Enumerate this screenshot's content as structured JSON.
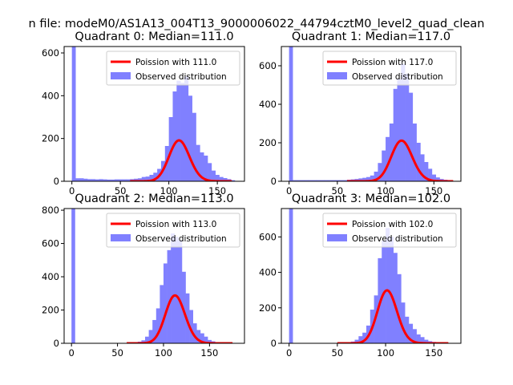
{
  "figure": {
    "suptitle": "n file: modeM0/AS1A13_004T13_9000006022_44794cztM0_level2_quad_clean"
  },
  "colors": {
    "observed": "#8080ff",
    "poisson": "#ff0000"
  },
  "chart_data": [
    {
      "type": "bar",
      "title": "Quadrant 0: Median=111.0",
      "xlim": [
        -8,
        178
      ],
      "ylim": [
        0,
        630
      ],
      "xticks": [
        0,
        50,
        100,
        150
      ],
      "yticks": [
        0,
        200,
        400,
        600
      ],
      "grid": false,
      "legend_position": "top-right",
      "legend": [
        "Poission with 111.0",
        "Observed distribution"
      ],
      "observed": {
        "name": "Observed distribution",
        "bin_width": 4,
        "spike": {
          "x": 0,
          "width": 4,
          "value": 630
        },
        "bins_start": [
          0,
          4,
          8,
          12,
          16,
          20,
          24,
          28,
          32,
          36,
          40,
          44,
          48,
          52,
          56,
          60,
          64,
          68,
          72,
          76,
          80,
          84,
          88,
          92,
          96,
          100,
          104,
          108,
          112,
          116,
          120,
          124,
          128,
          132,
          136,
          140,
          144,
          148,
          152,
          156,
          160,
          164
        ],
        "values": [
          12,
          14,
          14,
          12,
          10,
          10,
          9,
          10,
          9,
          8,
          8,
          9,
          9,
          9,
          9,
          10,
          12,
          14,
          20,
          22,
          30,
          40,
          58,
          95,
          165,
          300,
          420,
          470,
          460,
          490,
          400,
          320,
          170,
          135,
          120,
          85,
          50,
          30,
          20,
          15,
          10,
          5
        ]
      },
      "poisson": {
        "name": "Poission with 111.0",
        "lambda": 111.0,
        "scale": 5050,
        "x_range": [
          60,
          165
        ]
      }
    },
    {
      "type": "bar",
      "title": "Quadrant 1: Median=117.0",
      "xlim": [
        -8,
        178
      ],
      "ylim": [
        0,
        700
      ],
      "xticks": [
        0,
        50,
        100,
        150
      ],
      "yticks": [
        0,
        200,
        400,
        600
      ],
      "grid": false,
      "legend_position": "top-right",
      "legend": [
        "Poission with 117.0",
        "Observed distribution"
      ],
      "observed": {
        "name": "Observed distribution",
        "bin_width": 4,
        "spike": {
          "x": 0,
          "width": 4,
          "value": 700
        },
        "bins_start": [
          0,
          4,
          8,
          12,
          16,
          20,
          24,
          28,
          32,
          36,
          40,
          44,
          48,
          52,
          56,
          60,
          64,
          68,
          72,
          76,
          80,
          84,
          88,
          92,
          96,
          100,
          104,
          108,
          112,
          116,
          120,
          124,
          128,
          132,
          136,
          140,
          144,
          148,
          152,
          156,
          160,
          164
        ],
        "values": [
          6,
          6,
          6,
          6,
          6,
          6,
          6,
          6,
          6,
          6,
          6,
          6,
          6,
          6,
          6,
          8,
          10,
          12,
          15,
          18,
          22,
          30,
          50,
          95,
          160,
          230,
          300,
          480,
          530,
          610,
          560,
          460,
          300,
          200,
          140,
          100,
          65,
          35,
          20,
          12,
          8,
          5
        ]
      },
      "poisson": {
        "name": "Poission with 117.0",
        "lambda": 117.0,
        "scale": 5730,
        "x_range": [
          60,
          170
        ]
      }
    },
    {
      "type": "bar",
      "title": "Quadrant 2: Median=113.0",
      "xlim": [
        -8,
        188
      ],
      "ylim": [
        0,
        810
      ],
      "xticks": [
        0,
        50,
        100,
        150
      ],
      "yticks": [
        0,
        200,
        400,
        600,
        800
      ],
      "grid": false,
      "legend_position": "top-right",
      "legend": [
        "Poission with 113.0",
        "Observed distribution"
      ],
      "observed": {
        "name": "Observed distribution",
        "bin_width": 4,
        "spike": {
          "x": 0,
          "width": 4,
          "value": 810
        },
        "bins_start": [
          0,
          4,
          8,
          12,
          16,
          20,
          24,
          28,
          32,
          36,
          40,
          44,
          48,
          52,
          56,
          60,
          64,
          68,
          72,
          76,
          80,
          84,
          88,
          92,
          96,
          100,
          104,
          108,
          112,
          116,
          120,
          124,
          128,
          132,
          136,
          140,
          144,
          148,
          152,
          156,
          160,
          164,
          168,
          172
        ],
        "values": [
          2,
          2,
          2,
          2,
          2,
          2,
          2,
          2,
          2,
          2,
          2,
          2,
          2,
          2,
          2,
          2,
          4,
          6,
          10,
          18,
          40,
          80,
          140,
          210,
          350,
          480,
          560,
          660,
          640,
          620,
          430,
          300,
          200,
          120,
          80,
          60,
          40,
          20,
          12,
          6,
          4,
          2,
          2,
          2
        ]
      },
      "poisson": {
        "name": "Poission with 113.0",
        "lambda": 113.0,
        "scale": 7670,
        "x_range": [
          60,
          175
        ]
      }
    },
    {
      "type": "bar",
      "title": "Quadrant 3: Median=102.0",
      "xlim": [
        -8,
        178
      ],
      "ylim": [
        0,
        760
      ],
      "xticks": [
        0,
        50,
        100,
        150
      ],
      "yticks": [
        0,
        200,
        400,
        600
      ],
      "grid": false,
      "legend_position": "top-right",
      "legend": [
        "Poission with 102.0",
        "Observed distribution"
      ],
      "observed": {
        "name": "Observed distribution",
        "bin_width": 4,
        "spike": {
          "x": 0,
          "width": 4,
          "value": 760
        },
        "bins_start": [
          0,
          4,
          8,
          12,
          16,
          20,
          24,
          28,
          32,
          36,
          40,
          44,
          48,
          52,
          56,
          60,
          64,
          68,
          72,
          76,
          80,
          84,
          88,
          92,
          96,
          100,
          104,
          108,
          112,
          116,
          120,
          124,
          128,
          132,
          136,
          140,
          144,
          148,
          152,
          156,
          160,
          164
        ],
        "values": [
          2,
          2,
          2,
          2,
          2,
          2,
          2,
          2,
          2,
          2,
          2,
          2,
          2,
          2,
          3,
          5,
          10,
          20,
          40,
          60,
          100,
          190,
          270,
          480,
          580,
          650,
          600,
          510,
          390,
          230,
          150,
          110,
          80,
          50,
          35,
          20,
          12,
          8,
          5,
          3,
          2,
          2
        ]
      },
      "poisson": {
        "name": "Poission with 102.0",
        "lambda": 102.0,
        "scale": 7560,
        "x_range": [
          50,
          165
        ]
      }
    }
  ]
}
